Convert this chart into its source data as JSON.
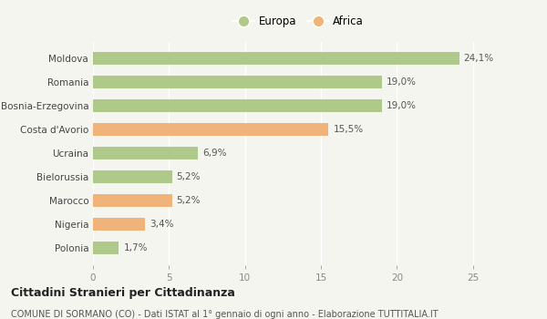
{
  "categories": [
    "Polonia",
    "Nigeria",
    "Marocco",
    "Bielorussia",
    "Ucraina",
    "Costa d'Avorio",
    "Bosnia-Erzegovina",
    "Romania",
    "Moldova"
  ],
  "values": [
    1.7,
    3.4,
    5.2,
    5.2,
    6.9,
    15.5,
    19.0,
    19.0,
    24.1
  ],
  "labels": [
    "1,7%",
    "3,4%",
    "5,2%",
    "5,2%",
    "6,9%",
    "15,5%",
    "19,0%",
    "19,0%",
    "24,1%"
  ],
  "continents": [
    "Europa",
    "Africa",
    "Africa",
    "Europa",
    "Europa",
    "Africa",
    "Europa",
    "Europa",
    "Europa"
  ],
  "color_europa": "#aec98a",
  "color_africa": "#f0b47a",
  "background_color": "#f5f5f0",
  "xlim": [
    0,
    27
  ],
  "xticks": [
    0,
    5,
    10,
    15,
    20,
    25
  ],
  "title": "Cittadini Stranieri per Cittadinanza",
  "subtitle": "COMUNE DI SORMANO (CO) - Dati ISTAT al 1° gennaio di ogni anno - Elaborazione TUTTITALIA.IT",
  "legend_europa": "Europa",
  "legend_africa": "Africa",
  "bar_height": 0.55,
  "label_fontsize": 7.5,
  "tick_fontsize": 7.5,
  "legend_fontsize": 8.5,
  "title_fontsize": 9,
  "subtitle_fontsize": 7
}
